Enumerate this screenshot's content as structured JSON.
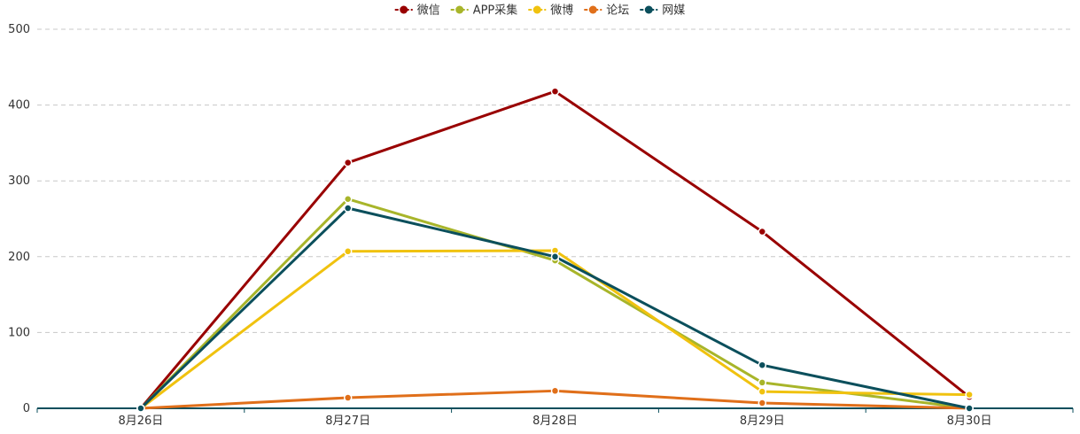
{
  "chart_data": {
    "type": "line",
    "categories": [
      "8月26日",
      "8月27日",
      "8月28日",
      "8月29日",
      "8月30日"
    ],
    "ylim": [
      0,
      500
    ],
    "yticks": [
      0,
      100,
      200,
      300,
      400,
      500
    ],
    "grid": "horizontal-dashed",
    "legend_position": "top-center",
    "axis_color": "#0b4f5c",
    "grid_color": "#c8c8c8",
    "series": [
      {
        "name": "微信",
        "color": "#990000",
        "values": [
          0,
          324,
          418,
          233,
          15
        ]
      },
      {
        "name": "APP采集",
        "color": "#a8b52a",
        "values": [
          0,
          276,
          195,
          34,
          0
        ]
      },
      {
        "name": "微博",
        "color": "#f0c20f",
        "values": [
          0,
          207,
          208,
          22,
          18
        ]
      },
      {
        "name": "论坛",
        "color": "#e06f1a",
        "values": [
          0,
          14,
          23,
          7,
          0
        ]
      },
      {
        "name": "网媒",
        "color": "#0b4f5c",
        "values": [
          0,
          264,
          200,
          57,
          0
        ]
      }
    ]
  }
}
